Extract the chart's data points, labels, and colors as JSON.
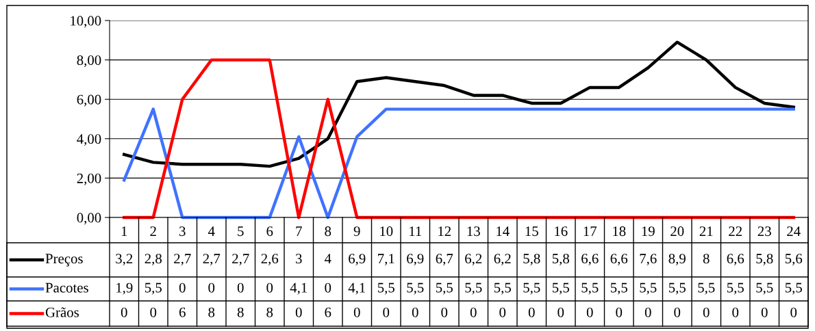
{
  "chart_data": {
    "type": "line",
    "categories": [
      "1",
      "2",
      "3",
      "4",
      "5",
      "6",
      "7",
      "8",
      "9",
      "10",
      "11",
      "12",
      "13",
      "14",
      "15",
      "16",
      "17",
      "18",
      "19",
      "20",
      "21",
      "22",
      "23",
      "24"
    ],
    "series": [
      {
        "name": "Preços",
        "color": "#000000",
        "values": [
          3.2,
          2.8,
          2.7,
          2.7,
          2.7,
          2.6,
          3,
          4,
          6.9,
          7.1,
          6.9,
          6.7,
          6.2,
          6.2,
          5.8,
          5.8,
          6.6,
          6.6,
          7.6,
          8.9,
          8,
          6.6,
          5.8,
          5.6
        ],
        "value_labels": [
          "3,2",
          "2,8",
          "2,7",
          "2,7",
          "2,7",
          "2,6",
          "3",
          "4",
          "6,9",
          "7,1",
          "6,9",
          "6,7",
          "6,2",
          "6,2",
          "5,8",
          "5,8",
          "6,6",
          "6,6",
          "7,6",
          "8,9",
          "8",
          "6,6",
          "5,8",
          "5,6"
        ]
      },
      {
        "name": "Pacotes",
        "color": "#3f72ff",
        "values": [
          1.9,
          5.5,
          0,
          0,
          0,
          0,
          4.1,
          0,
          4.1,
          5.5,
          5.5,
          5.5,
          5.5,
          5.5,
          5.5,
          5.5,
          5.5,
          5.5,
          5.5,
          5.5,
          5.5,
          5.5,
          5.5,
          5.5
        ],
        "value_labels": [
          "1,9",
          "5,5",
          "0",
          "0",
          "0",
          "0",
          "4,1",
          "0",
          "4,1",
          "5,5",
          "5,5",
          "5,5",
          "5,5",
          "5,5",
          "5,5",
          "5,5",
          "5,5",
          "5,5",
          "5,5",
          "5,5",
          "5,5",
          "5,5",
          "5,5",
          "5,5"
        ]
      },
      {
        "name": "Grãos",
        "color": "#ff0000",
        "values": [
          0,
          0,
          6,
          8,
          8,
          8,
          0,
          6,
          0,
          0,
          0,
          0,
          0,
          0,
          0,
          0,
          0,
          0,
          0,
          0,
          0,
          0,
          0,
          0
        ],
        "value_labels": [
          "0",
          "0",
          "6",
          "8",
          "8",
          "8",
          "0",
          "6",
          "0",
          "0",
          "0",
          "0",
          "0",
          "0",
          "0",
          "0",
          "0",
          "0",
          "0",
          "0",
          "0",
          "0",
          "0",
          "0"
        ]
      }
    ],
    "ylim": [
      0,
      10
    ],
    "yticks": [
      {
        "value": 0,
        "label": "0,00"
      },
      {
        "value": 2,
        "label": "2,00"
      },
      {
        "value": 4,
        "label": "4,00"
      },
      {
        "value": 6,
        "label": "6,00"
      },
      {
        "value": 8,
        "label": "8,00"
      },
      {
        "value": 10,
        "label": "10,00"
      }
    ],
    "grid": "y",
    "legend": "bottom",
    "marker": "none",
    "line_style": "solid"
  }
}
